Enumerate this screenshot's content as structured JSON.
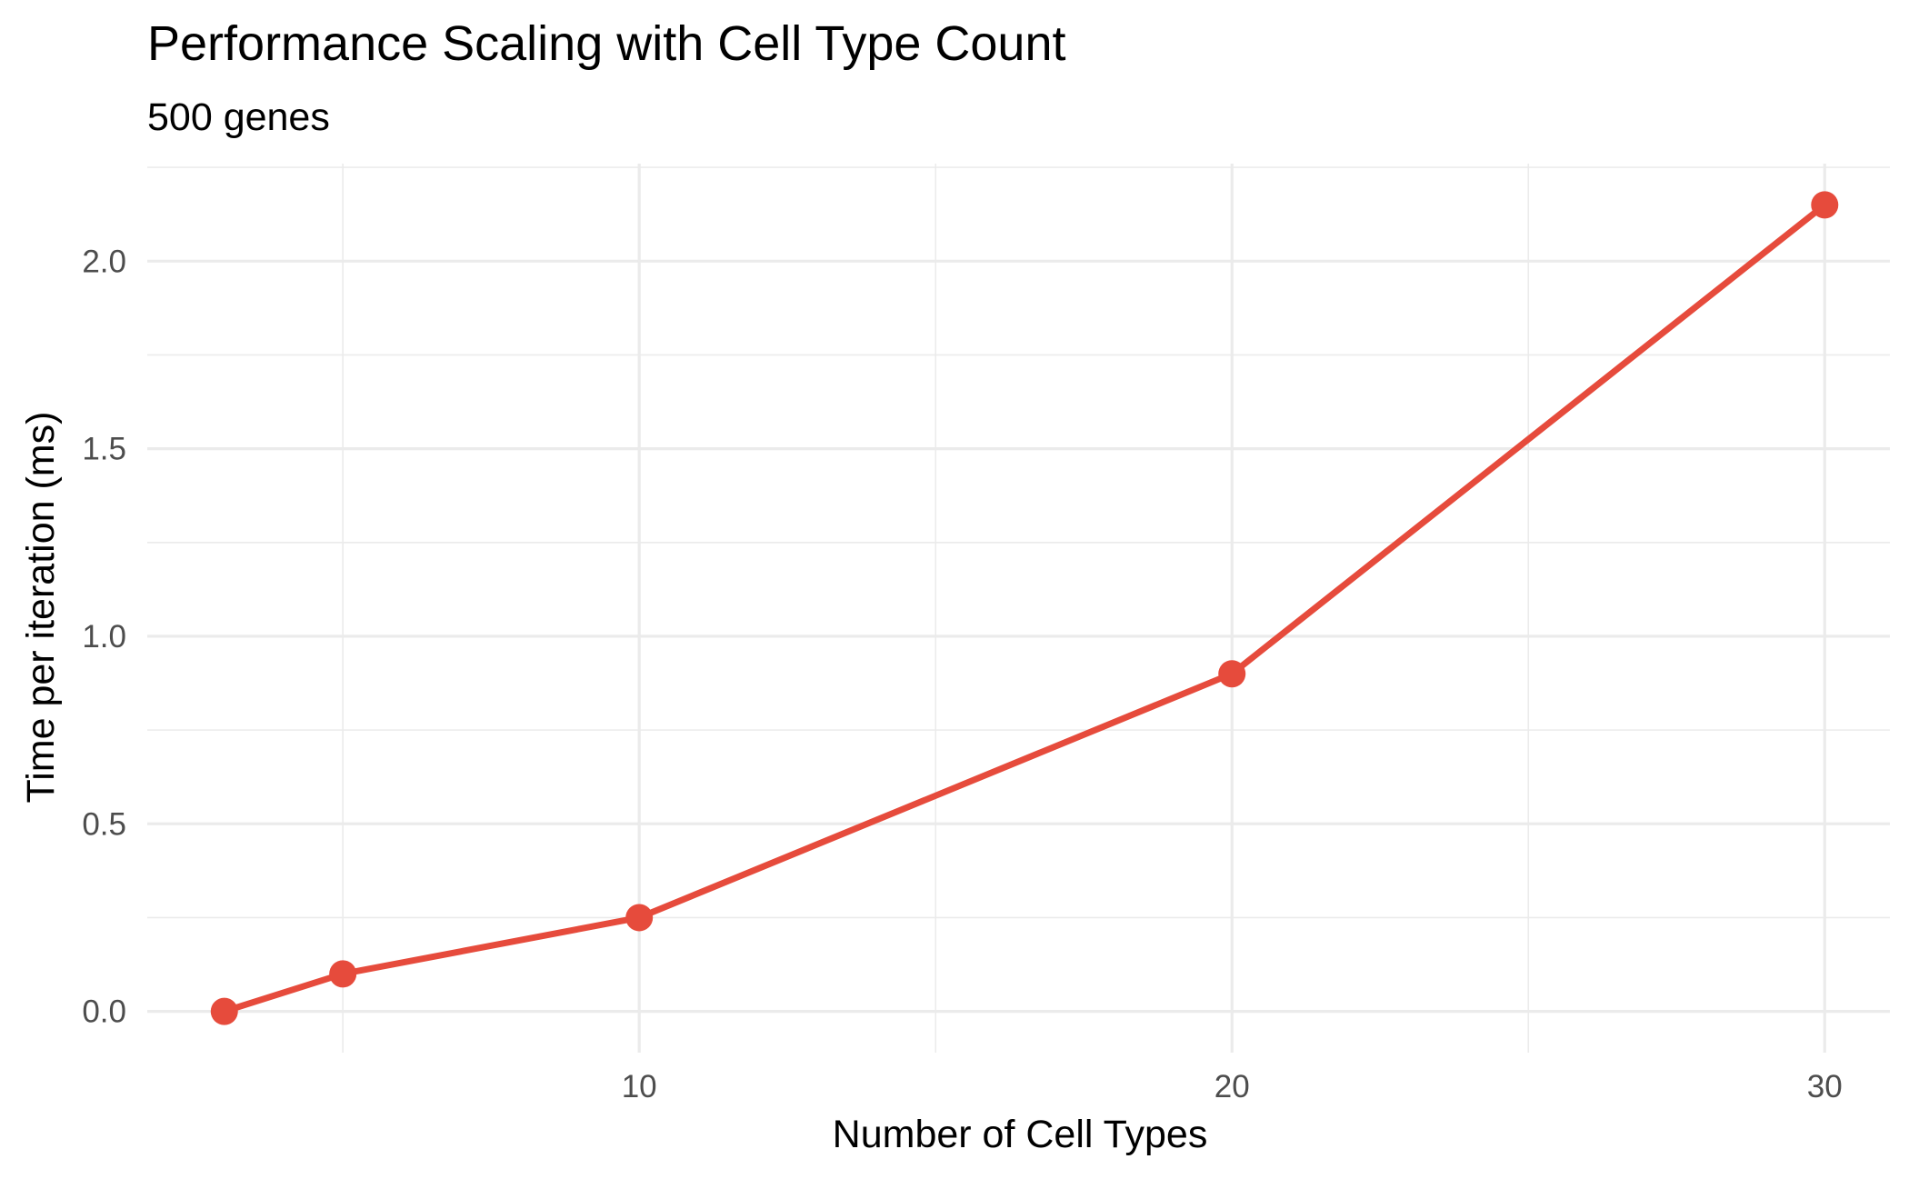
{
  "chart_data": {
    "type": "line",
    "title": "Performance Scaling with Cell Type Count",
    "subtitle": "500 genes",
    "xlabel": "Number of Cell Types",
    "ylabel": "Time per iteration (ms)",
    "xlim": [
      1.7,
      31.1
    ],
    "ylim": [
      -0.11,
      2.26
    ],
    "x_ticks": [
      10,
      20,
      30
    ],
    "x_minor_ticks": [
      5,
      15,
      25
    ],
    "y_ticks": [
      0.0,
      0.5,
      1.0,
      1.5,
      2.0
    ],
    "y_tick_labels": [
      "0.0",
      "0.5",
      "1.0",
      "1.5",
      "2.0"
    ],
    "y_minor_ticks": [
      0.25,
      0.75,
      1.25,
      1.75,
      2.25
    ],
    "grid": true,
    "series": [
      {
        "color": "#e64b3c",
        "x": [
          3,
          5,
          10,
          20,
          30
        ],
        "y": [
          0.0,
          0.1,
          0.25,
          0.9,
          2.15
        ]
      }
    ]
  }
}
